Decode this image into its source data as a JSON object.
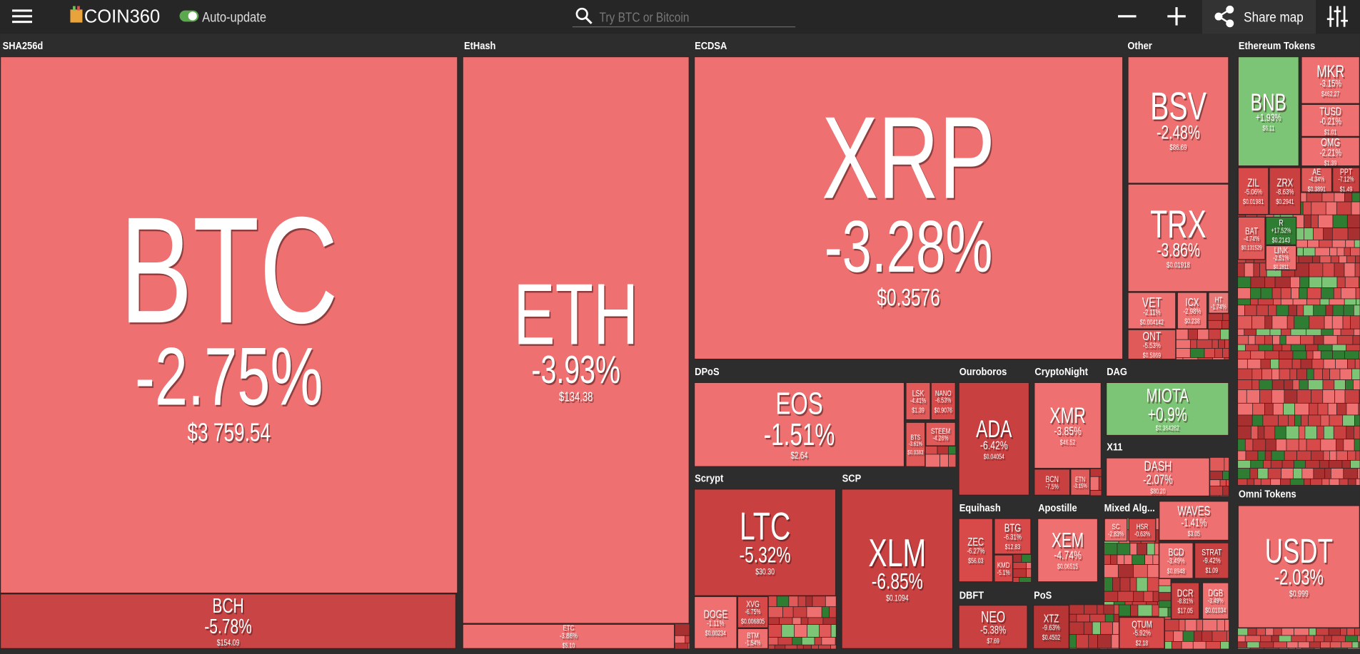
{
  "header": {
    "logo": "COIN360",
    "auto_update": "Auto-update",
    "search_placeholder": "Try BTC or Bitcoin",
    "share": "Share map"
  },
  "groups": [
    {
      "name": "SHA256d",
      "tiles": [
        {
          "symbol": "BTC",
          "change": "-2.75%",
          "price": "$3 759.54"
        },
        {
          "symbol": "BCH",
          "change": "-5.78%",
          "price": "$154.09"
        }
      ]
    },
    {
      "name": "EtHash",
      "tiles": [
        {
          "symbol": "ETH",
          "change": "-3.93%",
          "price": "$134.38"
        },
        {
          "symbol": "ETC",
          "change": "-3.86%",
          "price": "$5.10"
        }
      ]
    },
    {
      "name": "ECDSA",
      "tiles": [
        {
          "symbol": "XRP",
          "change": "-3.28%",
          "price": "$0.3576"
        }
      ]
    },
    {
      "name": "Other",
      "tiles": [
        {
          "symbol": "BSV",
          "change": "-2.48%",
          "price": "$86.69"
        },
        {
          "symbol": "TRX",
          "change": "-3.86%",
          "price": "$0.01918"
        },
        {
          "symbol": "VET",
          "change": "-2.11%",
          "price": "$0.004142"
        },
        {
          "symbol": "ICX",
          "change": "-2.98%",
          "price": "$0.238"
        },
        {
          "symbol": "HT",
          "change": "-1.74%"
        },
        {
          "symbol": "ONT",
          "change": "-5.53%",
          "price": "$0.5869"
        }
      ]
    },
    {
      "name": "Ethereum Tokens",
      "tiles": [
        {
          "symbol": "BNB",
          "change": "+1.93%",
          "price": "$6.11"
        },
        {
          "symbol": "MKR",
          "change": "-3.15%",
          "price": "$462.27"
        },
        {
          "symbol": "TUSD",
          "change": "-0.21%",
          "price": "$1.01"
        },
        {
          "symbol": "OMG",
          "change": "-2.21%",
          "price": "$1.39"
        },
        {
          "symbol": "ZIL",
          "change": "-5.06%",
          "price": "$0.01981"
        },
        {
          "symbol": "ZRX",
          "change": "-8.63%",
          "price": "$0.2941"
        },
        {
          "symbol": "AE",
          "change": "-4.34%",
          "price": "$0.3891"
        },
        {
          "symbol": "PPT",
          "change": "-7.12%",
          "price": "$1.49"
        },
        {
          "symbol": "BAT",
          "change": "-4.74%",
          "price": "$0.131529"
        },
        {
          "symbol": "R",
          "change": "+17.52%",
          "price": "$0.2143"
        },
        {
          "symbol": "LINK",
          "change": "-2.51%",
          "price": "$0.2811"
        }
      ]
    },
    {
      "name": "Omni Tokens",
      "tiles": [
        {
          "symbol": "USDT",
          "change": "-2.03%",
          "price": "$0.999"
        }
      ]
    },
    {
      "name": "DPoS",
      "tiles": [
        {
          "symbol": "EOS",
          "change": "-1.51%",
          "price": "$2.64"
        },
        {
          "symbol": "LSK",
          "change": "-4.41%",
          "price": "$1.39"
        },
        {
          "symbol": "NANO",
          "change": "-6.53%",
          "price": "$0.9076"
        },
        {
          "symbol": "BTS",
          "change": "-3.61%",
          "price": "$0.0383"
        },
        {
          "symbol": "STEEM",
          "change": "-4.26%"
        }
      ]
    },
    {
      "name": "Ouroboros",
      "tiles": [
        {
          "symbol": "ADA",
          "change": "-6.42%",
          "price": "$0.04054"
        }
      ]
    },
    {
      "name": "CryptoNight",
      "tiles": [
        {
          "symbol": "XMR",
          "change": "-3.85%",
          "price": "$46.52"
        },
        {
          "symbol": "BCN",
          "change": "-7.5%"
        },
        {
          "symbol": "ETN",
          "change": "-3.15%"
        }
      ]
    },
    {
      "name": "DAG",
      "tiles": [
        {
          "symbol": "MIOTA",
          "change": "+0.9%",
          "price": "$0.364262"
        }
      ]
    },
    {
      "name": "X11",
      "tiles": [
        {
          "symbol": "DASH",
          "change": "-2.07%",
          "price": "$80.20"
        }
      ]
    },
    {
      "name": "Scrypt",
      "tiles": [
        {
          "symbol": "LTC",
          "change": "-5.32%",
          "price": "$30.30"
        },
        {
          "symbol": "DOGE",
          "change": "-1.11%",
          "price": "$0.00234"
        },
        {
          "symbol": "XVG",
          "change": "-6.75%",
          "price": "$0.006805"
        },
        {
          "symbol": "BTM",
          "change": "-1.54%"
        }
      ]
    },
    {
      "name": "SCP",
      "tiles": [
        {
          "symbol": "XLM",
          "change": "-6.85%",
          "price": "$0.1094"
        }
      ]
    },
    {
      "name": "Equihash",
      "tiles": [
        {
          "symbol": "ZEC",
          "change": "-6.27%",
          "price": "$56.03"
        },
        {
          "symbol": "BTG",
          "change": "-6.31%",
          "price": "$12.83"
        },
        {
          "symbol": "KMD",
          "change": "-5.1%"
        }
      ]
    },
    {
      "name": "Apostille",
      "tiles": [
        {
          "symbol": "XEM",
          "change": "-4.74%",
          "price": "$0.06515"
        }
      ]
    },
    {
      "name": "Mixed Alg...",
      "tiles": [
        {
          "symbol": "SC",
          "change": "-2.83%"
        },
        {
          "symbol": "HSR",
          "change": "-0.63%"
        },
        {
          "symbol": "WAVES",
          "change": "-1.41%",
          "price": "$3.05"
        },
        {
          "symbol": "BCD",
          "change": "-3.49%",
          "price": "$0.8948"
        },
        {
          "symbol": "STRAT",
          "change": "-9.42%",
          "price": "$1.09"
        }
      ]
    },
    {
      "name": "DBFT",
      "tiles": [
        {
          "symbol": "NEO",
          "change": "-5.38%",
          "price": "$7.69"
        }
      ]
    },
    {
      "name": "PoS",
      "tiles": [
        {
          "symbol": "XTZ",
          "change": "-9.63%",
          "price": "$0.4502"
        },
        {
          "symbol": "QTUM",
          "change": "-5.92%",
          "price": "$2.18"
        },
        {
          "symbol": "DCR",
          "change": "-8.81%",
          "price": "$17.05"
        },
        {
          "symbol": "DGB",
          "change": "-3.49%",
          "price": "$0.01034"
        }
      ]
    }
  ]
}
